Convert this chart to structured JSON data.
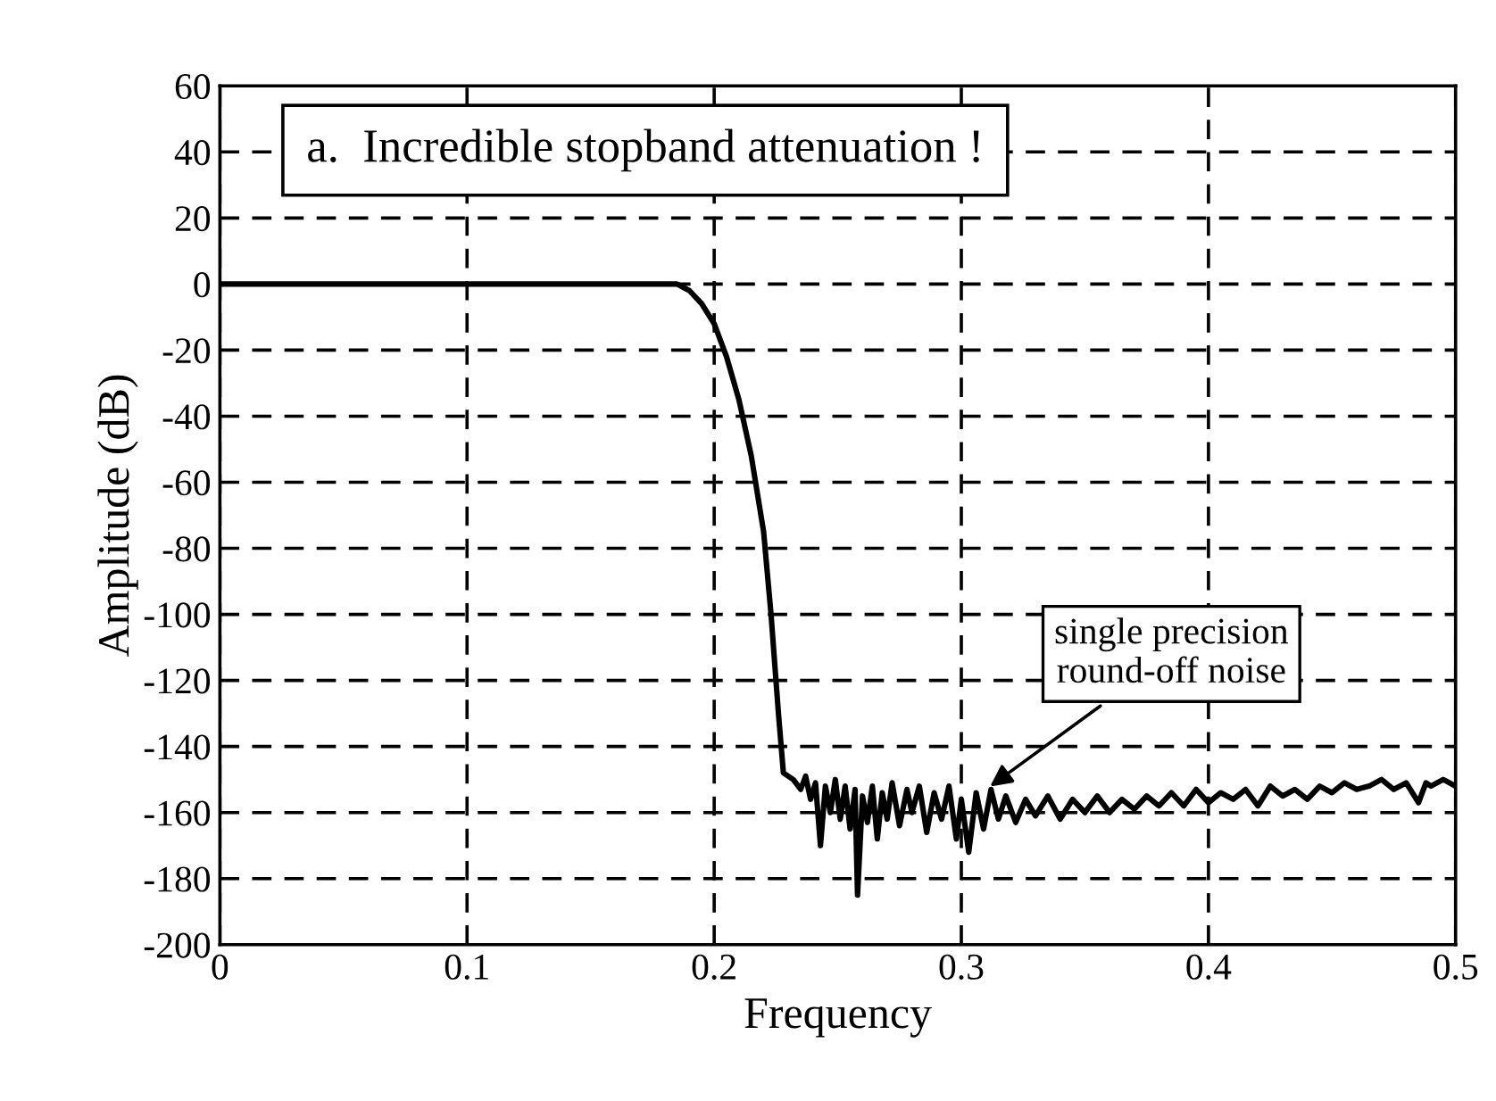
{
  "chart_data": {
    "type": "line",
    "title": "a.  Incredible stopband attenuation !",
    "xlabel": "Frequency",
    "ylabel": "Amplitude (dB)",
    "xlim": [
      0,
      0.5
    ],
    "xticks": [
      0,
      0.1,
      0.2,
      0.3,
      0.4,
      0.5
    ],
    "ylim": [
      -200,
      60
    ],
    "yticks": [
      -200,
      -180,
      -160,
      -140,
      -120,
      -100,
      -80,
      -60,
      -40,
      -20,
      0,
      20,
      40,
      60
    ],
    "grid": true,
    "line_style": "solid",
    "marker": "none",
    "annotations": [
      {
        "text": "single precision\nround-off noise",
        "x": 0.31,
        "y": -153
      }
    ],
    "series": [
      {
        "color": "#000000",
        "x": [
          0,
          0.1,
          0.18,
          0.185,
          0.19,
          0.195,
          0.2,
          0.205,
          0.21,
          0.215,
          0.22,
          0.223,
          0.226,
          0.228,
          0.232,
          0.235,
          0.237,
          0.239,
          0.241,
          0.243,
          0.245,
          0.247,
          0.249,
          0.251,
          0.253,
          0.255,
          0.257,
          0.258,
          0.26,
          0.262,
          0.264,
          0.266,
          0.268,
          0.27,
          0.272,
          0.275,
          0.278,
          0.28,
          0.283,
          0.286,
          0.289,
          0.292,
          0.295,
          0.298,
          0.3,
          0.303,
          0.306,
          0.309,
          0.312,
          0.315,
          0.318,
          0.322,
          0.326,
          0.33,
          0.335,
          0.34,
          0.345,
          0.35,
          0.355,
          0.36,
          0.365,
          0.37,
          0.375,
          0.38,
          0.385,
          0.39,
          0.395,
          0.4,
          0.405,
          0.41,
          0.415,
          0.42,
          0.425,
          0.43,
          0.435,
          0.44,
          0.445,
          0.45,
          0.455,
          0.46,
          0.465,
          0.47,
          0.475,
          0.48,
          0.485,
          0.488,
          0.49,
          0.495,
          0.5
        ],
        "values": [
          0,
          0,
          0,
          0,
          -2,
          -6,
          -12,
          -22,
          -35,
          -52,
          -75,
          -100,
          -130,
          -148,
          -150,
          -153,
          -149,
          -156,
          -151,
          -170,
          -152,
          -160,
          -150,
          -162,
          -152,
          -165,
          -153,
          -185,
          -155,
          -163,
          -152,
          -168,
          -154,
          -162,
          -151,
          -164,
          -153,
          -160,
          -152,
          -166,
          -154,
          -162,
          -152,
          -168,
          -156,
          -172,
          -154,
          -165,
          -153,
          -162,
          -155,
          -163,
          -156,
          -161,
          -155,
          -162,
          -156,
          -160,
          -155,
          -160,
          -156,
          -159,
          -155,
          -158,
          -154,
          -158,
          -153,
          -157,
          -154,
          -156,
          -153,
          -158,
          -152,
          -155,
          -153,
          -156,
          -152,
          -154,
          -151,
          -153,
          -152,
          -150,
          -153,
          -151,
          -157,
          -151,
          -152,
          -150,
          -152
        ]
      }
    ]
  }
}
